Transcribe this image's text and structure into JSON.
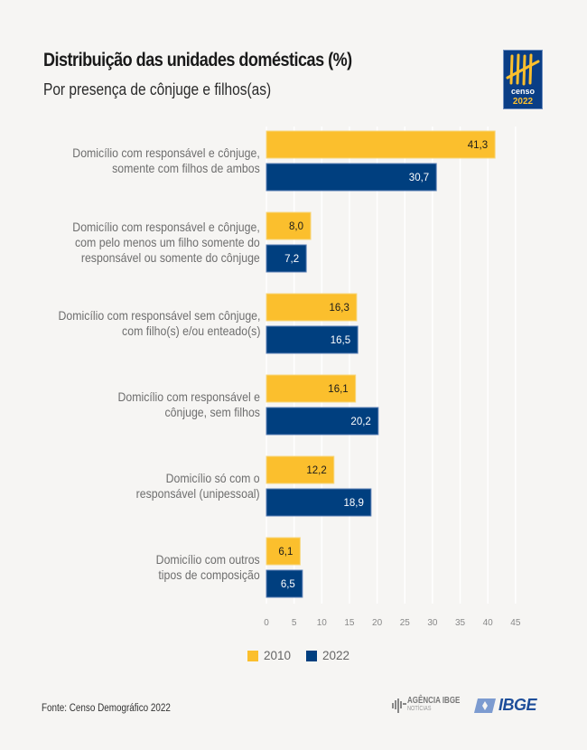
{
  "header": {
    "title": "Distribuição das unidades domésticas (%)",
    "subtitle": "Por presença de cônjuge e filhos(as)"
  },
  "logo": {
    "top_text": "censo",
    "bottom_text": "2022"
  },
  "footer": {
    "source": "Fonte: Censo Demográfico 2022",
    "agencia_line1": "AGÊNCIA IBGE",
    "agencia_line2": "NOTÍCIAS",
    "ibge": "IBGE"
  },
  "colors": {
    "y2010": "#fbbf2d",
    "y2022": "#003f7f",
    "background": "#f6f5f3"
  },
  "chart_data": {
    "type": "bar",
    "orientation": "horizontal",
    "title": "Distribuição das unidades domésticas (%)",
    "subtitle": "Por presença de cônjuge e filhos(as)",
    "xlabel": "",
    "ylabel": "",
    "xlim": [
      0,
      45
    ],
    "xticks": [
      0,
      5,
      10,
      15,
      20,
      25,
      30,
      35,
      40,
      45
    ],
    "grid": true,
    "legend_position": "bottom",
    "categories": [
      [
        "Domicílio com responsável e cônjuge,",
        "somente com filhos de ambos"
      ],
      [
        "Domicílio com responsável e cônjuge,",
        "com pelo menos um filho somente do",
        "responsável ou somente do cônjuge"
      ],
      [
        "Domicílio com responsável sem cônjuge,",
        "com filho(s) e/ou enteado(s)"
      ],
      [
        "Domicílio com responsável e",
        "cônjuge, sem filhos"
      ],
      [
        "Domicílio só com o",
        "responsável (unipessoal)"
      ],
      [
        "Domicílio com outros",
        "tipos de composição"
      ]
    ],
    "series": [
      {
        "name": "2010",
        "values": [
          41.3,
          8.0,
          16.3,
          16.1,
          12.2,
          6.1
        ],
        "labels": [
          "41,3",
          "8,0",
          "16,3",
          "16,1",
          "12,2",
          "6,1"
        ]
      },
      {
        "name": "2022",
        "values": [
          30.7,
          7.2,
          16.5,
          20.2,
          18.9,
          6.5
        ],
        "labels": [
          "30,7",
          "7,2",
          "16,5",
          "20,2",
          "18,9",
          "6,5"
        ]
      }
    ]
  }
}
